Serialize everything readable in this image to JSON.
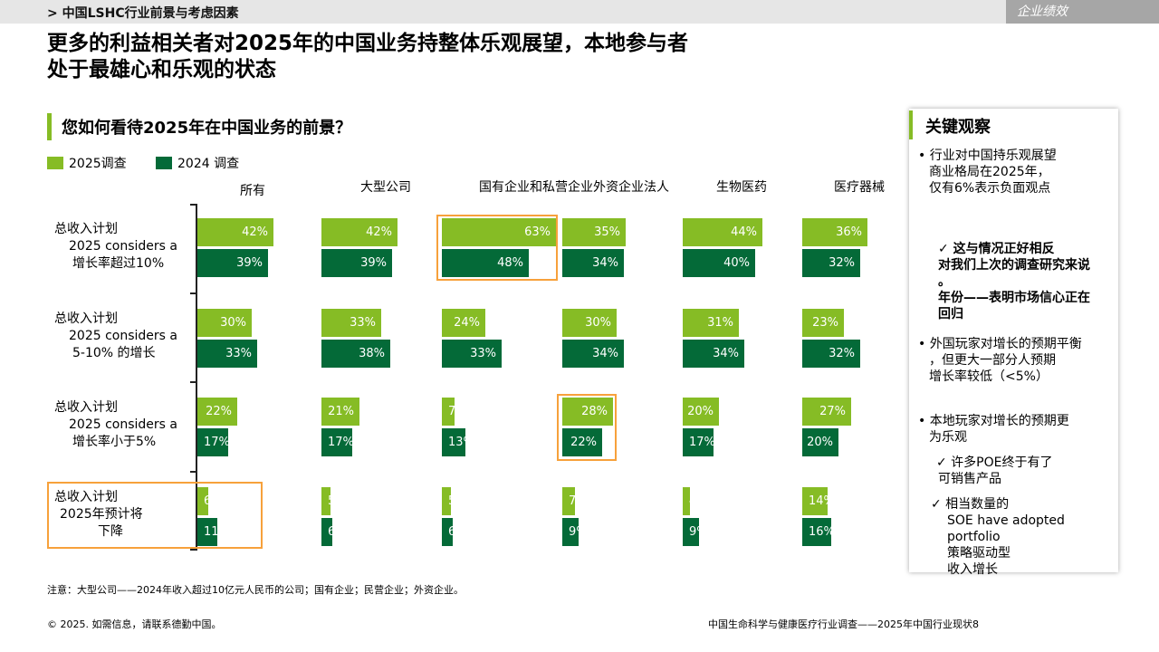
{
  "header": {
    "breadcrumb": "> 中国LSHC行业前景与考虑因素",
    "section_tag": "企业绩效"
  },
  "title": {
    "line1": "更多的利益相关者对2025年的中国业务持整体乐观展望，本地参与者",
    "line2": "处于最雄心和乐观的状态"
  },
  "chart_data": {
    "type": "bar",
    "title": "您如何看待2025年在中国业务的前景？",
    "orientation": "horizontal",
    "unit": "%",
    "categories": [
      "所有",
      "大型公司",
      "国有企业和私营企业",
      "外资企业法人",
      "生物医药",
      "医疗器械"
    ],
    "category_header": "国有企业和私营企业外资企业法人",
    "row_groups": [
      {
        "label_lines": [
          "总收入计划",
          "2025 considers a",
          "增长率超过10%"
        ]
      },
      {
        "label_lines": [
          "总收入计划",
          "2025 considers a",
          "5-10% 的增长"
        ]
      },
      {
        "label_lines": [
          "总收入计划",
          "2025 considers a",
          "增长率小于5%"
        ]
      },
      {
        "label_lines": [
          "总收入计划",
          "2025年预计将",
          "下降"
        ]
      }
    ],
    "series": [
      {
        "name": "2025调查",
        "color": "#86bc25",
        "values": [
          [
            42,
            42,
            63,
            35,
            44,
            36
          ],
          [
            30,
            33,
            24,
            30,
            31,
            23
          ],
          [
            22,
            21,
            7,
            28,
            20,
            27
          ],
          [
            6,
            5,
            5,
            7,
            4,
            14
          ]
        ]
      },
      {
        "name": "2024 调查",
        "color": "#046a38",
        "values": [
          [
            39,
            39,
            48,
            34,
            40,
            32
          ],
          [
            33,
            38,
            33,
            34,
            34,
            32
          ],
          [
            17,
            17,
            13,
            22,
            17,
            20
          ],
          [
            11,
            6,
            6,
            9,
            9,
            16
          ]
        ]
      }
    ],
    "highlighted_cells": [
      [
        0,
        2
      ],
      [
        2,
        3
      ]
    ],
    "highlighted_row": 3
  },
  "side_panel": {
    "title": "关键观察",
    "b1": [
      "• 行业对中国持乐观展望",
      "商业格局在2025年，",
      "仅有6%表示负面观点"
    ],
    "c1": [
      "✓ 这与情况正好相反",
      "对我们上次的调查研究来说",
      "。",
      "年份——表明市场信心正在",
      "回归"
    ],
    "b2": [
      "• 外国玩家对增长的预期平衡",
      "，但更大一部分人预期",
      "增长率较低（<5%）"
    ],
    "b3": [
      "• 本地玩家对增长的预期更",
      "为乐观"
    ],
    "c2": [
      "✓ 许多POE终于有了",
      "可销售产品"
    ],
    "c3": [
      "✓ 相当数量的",
      "SOE have adopted portfolio",
      "策略驱动型",
      "收入增长"
    ]
  },
  "footer": {
    "note": "注意：大型公司——2024年收入超过10亿元人民币的公司；国有企业；民营企业；外资企业。",
    "copyright": "© 2025. 如需信息，请联系德勤中国。",
    "source": "中国生命科学与健康医疗行业调查——2025年中国行业现状8"
  }
}
